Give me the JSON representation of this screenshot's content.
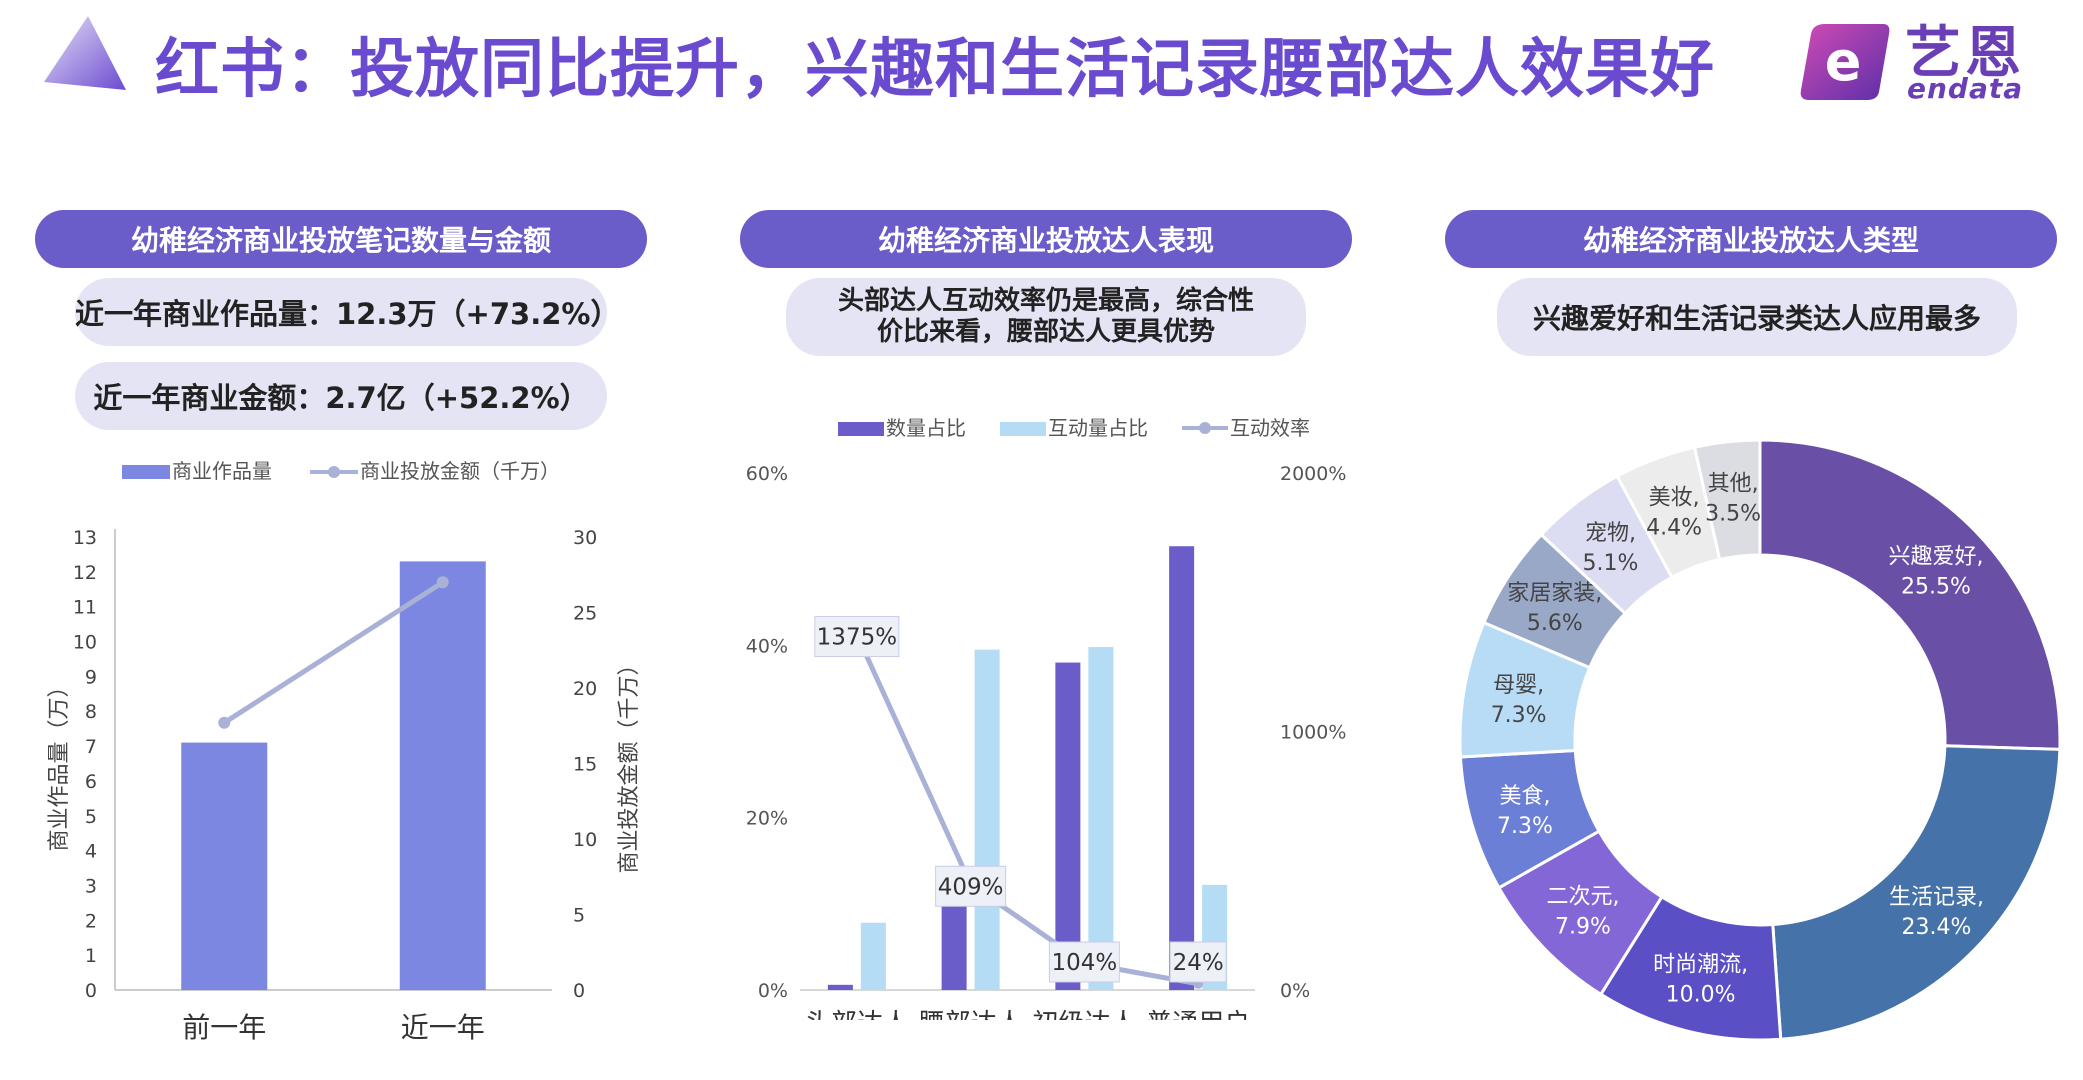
{
  "title": "红书：投放同比提升，兴趣和生活记录腰部达人效果好",
  "logo": {
    "cn": "艺恩",
    "en": "endata"
  },
  "colors": {
    "accent": "#6a4bd0",
    "header": "#6a5cc9",
    "pill": "#e4e4f4"
  },
  "panel1": {
    "header": "幼稚经济商业投放笔记数量与金额",
    "stat1": "近一年商业作品量：12.3万（+73.2%）",
    "stat2": "近一年商业金额：2.7亿（+52.2%）"
  },
  "panel2": {
    "header": "幼稚经济商业投放达人表现",
    "note": "头部达人互动效率仍是最高，综合性价比来看，腰部达人更具优势"
  },
  "panel3": {
    "header": "幼稚经济商业投放达人类型",
    "note": "兴趣爱好和生活记录类达人应用最多"
  },
  "chart_data": [
    {
      "type": "bar",
      "categories": [
        "前一年",
        "近一年"
      ],
      "series": [
        {
          "name": "商业作品量",
          "kind": "bar",
          "axis": "left",
          "values": [
            7.1,
            12.3
          ],
          "color": "#7b87e0"
        },
        {
          "name": "商业投放金额（千万）",
          "kind": "line",
          "axis": "right",
          "values": [
            17.7,
            27.0
          ],
          "color": "#a9b2d6"
        }
      ],
      "ylabel": "商业作品量（万）",
      "y2label": "商业投放金额（千万）",
      "yticks": [
        "0",
        "1",
        "2",
        "3",
        "4",
        "5",
        "6",
        "7",
        "8",
        "9",
        "10",
        "11",
        "12",
        "13"
      ],
      "y2ticks": [
        "0",
        "5",
        "10",
        "15",
        "20",
        "25",
        "30"
      ],
      "ylim": [
        0,
        13
      ],
      "y2lim": [
        0,
        30
      ],
      "legend": "top"
    },
    {
      "type": "bar",
      "categories": [
        "头部达人",
        "腰部达人",
        "初级达人",
        "普通用户"
      ],
      "series": [
        {
          "name": "数量占比",
          "kind": "bar",
          "axis": "left",
          "values": [
            0.6,
            10.0,
            38.0,
            51.5
          ],
          "color": "#6a5cc9"
        },
        {
          "name": "互动量占比",
          "kind": "bar",
          "axis": "left",
          "values": [
            7.8,
            39.5,
            39.8,
            12.2
          ],
          "color": "#b4dcf5"
        },
        {
          "name": "互动效率",
          "kind": "line",
          "axis": "right",
          "values": [
            1375,
            409,
            104,
            24
          ],
          "labels": [
            "1375%",
            "409%",
            "104%",
            "24%"
          ],
          "color": "#a9b2d6"
        }
      ],
      "yticks": [
        "0%",
        "20%",
        "40%",
        "60%"
      ],
      "y2ticks": [
        "0%",
        "1000%",
        "2000%"
      ],
      "ylim": [
        0,
        60
      ],
      "y2lim": [
        0,
        2000
      ],
      "legend": "top"
    },
    {
      "type": "pie",
      "donut": true,
      "slices": [
        {
          "label": "兴趣爱好,",
          "pct": "25.5%",
          "value": 25.5,
          "color": "#6950a6"
        },
        {
          "label": "生活记录,",
          "pct": "23.4%",
          "value": 23.4,
          "color": "#4572a8"
        },
        {
          "label": "时尚潮流,",
          "pct": "10.0%",
          "value": 10.0,
          "color": "#5a4fc4"
        },
        {
          "label": "二次元,",
          "pct": "7.9%",
          "value": 7.9,
          "color": "#8467d6"
        },
        {
          "label": "美食,",
          "pct": "7.3%",
          "value": 7.3,
          "color": "#6c7fd6"
        },
        {
          "label": "母婴,",
          "pct": "7.3%",
          "value": 7.3,
          "color": "#b9dcf6"
        },
        {
          "label": "家居家装,",
          "pct": "5.6%",
          "value": 5.6,
          "color": "#9aa8c8"
        },
        {
          "label": "宠物,",
          "pct": "5.1%",
          "value": 5.1,
          "color": "#dcdcf3"
        },
        {
          "label": "美妆,",
          "pct": "4.4%",
          "value": 4.4,
          "color": "#ececec"
        },
        {
          "label": "其他,",
          "pct": "3.5%",
          "value": 3.5,
          "color": "#dcdde2"
        }
      ]
    }
  ]
}
